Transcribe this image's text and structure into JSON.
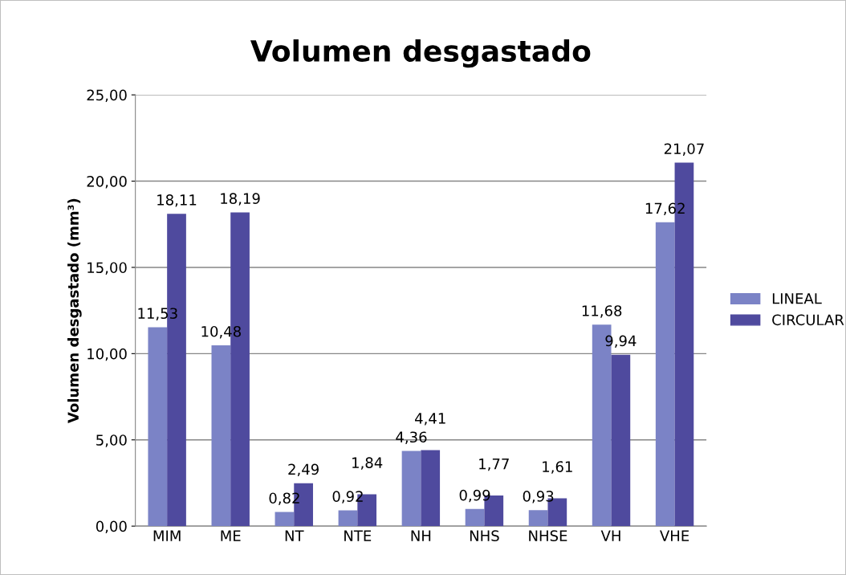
{
  "chart_data": {
    "type": "bar",
    "title": "Volumen desgastado",
    "ylabel": "Volumen desgastado (mm³)",
    "categories": [
      "MIM",
      "ME",
      "NT",
      "NTE",
      "NH",
      "NHS",
      "NHSE",
      "VH",
      "VHE"
    ],
    "series": [
      {
        "name": "LINEAL",
        "color": "#7b83c6",
        "values": [
          11.53,
          10.48,
          0.82,
          0.92,
          4.36,
          0.99,
          0.93,
          11.68,
          17.62
        ],
        "value_labels": [
          "11,53",
          "10,48",
          "0,82",
          "0,92",
          "4,36",
          "0,99",
          "0,93",
          "11,68",
          "17,62"
        ]
      },
      {
        "name": "CIRCULAR",
        "color": "#4f4a9e",
        "values": [
          18.11,
          18.19,
          2.49,
          1.84,
          4.41,
          1.77,
          1.61,
          9.94,
          21.07
        ],
        "value_labels": [
          "18,11",
          "18,19",
          "2,49",
          "1,84",
          "4,41",
          "1,77",
          "1,61",
          "9,94",
          "21,07"
        ]
      }
    ],
    "ylim": [
      0,
      25
    ],
    "yticks": [
      {
        "value": 0,
        "label": "0,00"
      },
      {
        "value": 5,
        "label": "5,00"
      },
      {
        "value": 10,
        "label": "10,00"
      },
      {
        "value": 15,
        "label": "15,00"
      },
      {
        "value": 20,
        "label": "20,00"
      },
      {
        "value": 25,
        "label": "25,00"
      }
    ],
    "grid": "y",
    "legend": "right"
  }
}
